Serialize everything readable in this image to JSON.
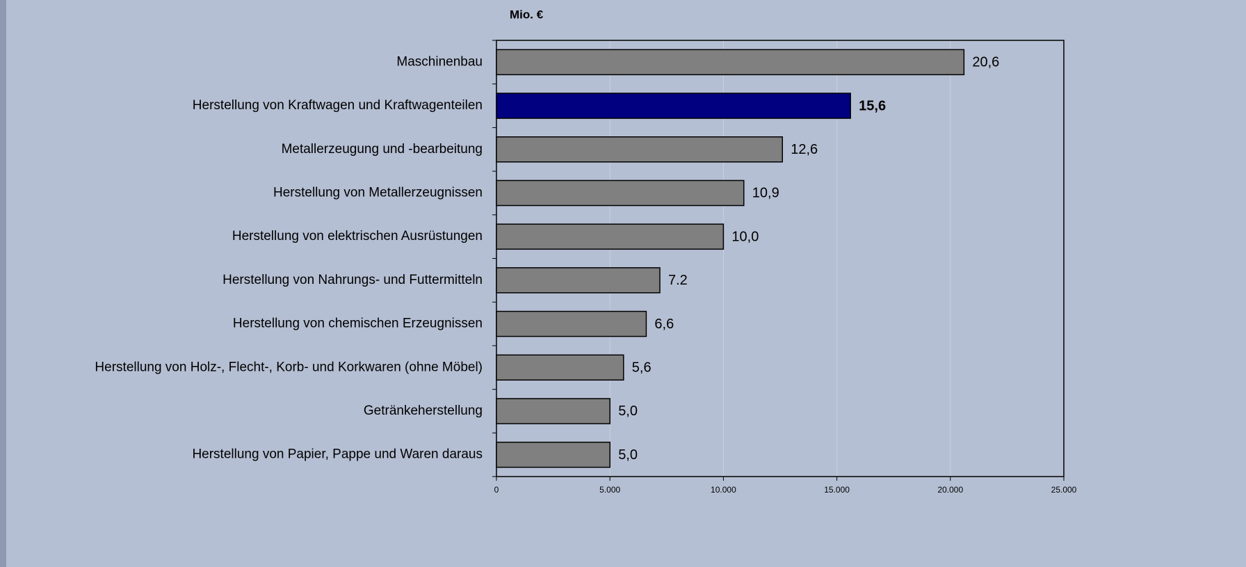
{
  "chart_data": {
    "type": "bar",
    "orientation": "horizontal",
    "axis_label": "Mio. €",
    "categories": [
      "Maschinenbau",
      "Herstellung von Kraftwagen und Kraftwagenteilen",
      "Metallerzeugung und -bearbeitung",
      "Herstellung von Metallerzeugnissen",
      "Herstellung von elektrischen Ausrüstungen",
      "Herstellung von Nahrungs- und Futtermitteln",
      "Herstellung von chemischen Erzeugnissen",
      "Herstellung von Holz-, Flecht-, Korb- und Korkwaren (ohne Möbel)",
      "Getränkeherstellung",
      "Herstellung von Papier, Pappe und Waren daraus"
    ],
    "values": [
      20600,
      15600,
      12600,
      10900,
      10000,
      7200,
      6600,
      5600,
      5000,
      5000
    ],
    "value_labels": [
      "20,6",
      "15,6",
      "12,6",
      "10,9",
      "10,0",
      "7.2",
      "6,6",
      "5,6",
      "5,0",
      "5,0"
    ],
    "colors": [
      "#808080",
      "#000080",
      "#808080",
      "#808080",
      "#808080",
      "#808080",
      "#808080",
      "#808080",
      "#808080",
      "#808080"
    ],
    "xlim": [
      0,
      25000
    ],
    "xticks": [
      0,
      {
        "value": 5000,
        "label": "5.000"
      },
      {
        "value": 10000,
        "label": "10.000"
      },
      {
        "value": 15000,
        "label": "15.000"
      },
      {
        "value": 20000,
        "label": "20.000"
      },
      {
        "value": 25000,
        "label": "25.000"
      }
    ],
    "grid": true
  }
}
